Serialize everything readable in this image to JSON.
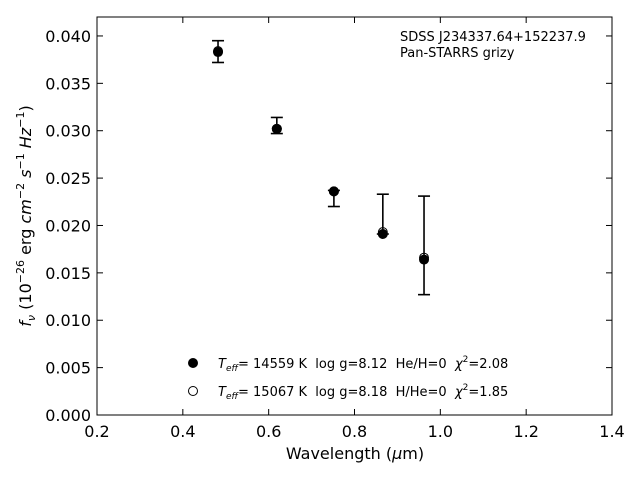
{
  "chart_data": {
    "type": "scatter",
    "title": "",
    "xlabel": {
      "prefix": "Wavelength (",
      "mu": "μ",
      "suffix": "m)"
    },
    "ylabel": {
      "f": "f",
      "nu": "ν",
      "open": " (10",
      "exp1": "−26",
      "erg": " erg ",
      "cm": "cm",
      "exp2": "−2",
      "s": " s",
      "exp3": "−1",
      "hz": " Hz",
      "exp4": "−1",
      "close": ")"
    },
    "xlim": [
      0.2,
      1.4
    ],
    "ylim": [
      0.0,
      0.042
    ],
    "xticks": [
      0.2,
      0.4,
      0.6,
      0.8,
      1.0,
      1.2,
      1.4
    ],
    "xtick_labels": [
      "0.2",
      "0.4",
      "0.6",
      "0.8",
      "1.0",
      "1.2",
      "1.4"
    ],
    "yticks": [
      0.0,
      0.005,
      0.01,
      0.015,
      0.02,
      0.025,
      0.03,
      0.035,
      0.04
    ],
    "ytick_labels": [
      "0.000",
      "0.005",
      "0.010",
      "0.015",
      "0.020",
      "0.025",
      "0.030",
      "0.035",
      "0.040"
    ],
    "grid": false,
    "annotation": [
      "SDSS J234337.64+152237.9",
      "Pan-STARRS grizy"
    ],
    "observed": {
      "x": [
        0.482,
        0.619,
        0.752,
        0.866,
        0.962
      ],
      "y": [
        0.0383,
        0.0302,
        0.0235,
        0.0191,
        0.0163
      ],
      "yerr_low": [
        0.0372,
        0.0297,
        0.022,
        0.0191,
        0.0127
      ],
      "yerr_high": [
        0.0395,
        0.0314,
        0.0237,
        0.0233,
        0.0231
      ]
    },
    "series": [
      {
        "marker": "filled",
        "x": [
          0.482,
          0.619,
          0.752,
          0.866,
          0.962
        ],
        "y": [
          0.0383,
          0.0302,
          0.0236,
          0.0191,
          0.0164
        ],
        "legend": {
          "t": "T",
          "eff": "eff",
          "rest": "= 14559 K  log g=8.12  He/H=0  ",
          "chi": "χ",
          "sq": "2",
          "val": "=2.08"
        }
      },
      {
        "marker": "open",
        "x": [
          0.482,
          0.619,
          0.752,
          0.866,
          0.962
        ],
        "y": [
          0.0384,
          0.0302,
          0.0236,
          0.0193,
          0.0166
        ],
        "legend": {
          "t": "T",
          "eff": "eff",
          "rest": "= 15067 K  log g=8.18  H/He=0  ",
          "chi": "χ",
          "sq": "2",
          "val": "=1.85"
        }
      }
    ],
    "legend_position": "lower-center",
    "colors": {
      "marker": "#000000",
      "axis": "#000000",
      "background": "#ffffff"
    }
  }
}
